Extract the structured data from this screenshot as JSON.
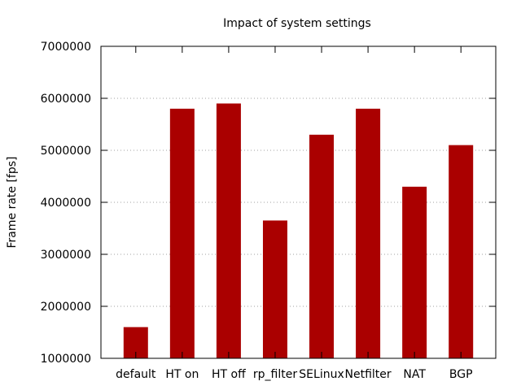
{
  "colors": {
    "bar": "#aa0000",
    "grid": "#a0a0a0",
    "axis": "#000000",
    "background": "#ffffff"
  },
  "chart_data": {
    "type": "bar",
    "title": "Impact of system settings",
    "xlabel": "",
    "ylabel": "Frame rate [fps]",
    "categories": [
      "default",
      "HT on",
      "HT off",
      "rp_filter",
      "SELinux",
      "Netfilter",
      "NAT",
      "BGP"
    ],
    "values": [
      1600000,
      5800000,
      5900000,
      3650000,
      5300000,
      5800000,
      4300000,
      5100000
    ],
    "ylim": [
      1000000,
      7000000
    ],
    "yticks": [
      1000000,
      2000000,
      3000000,
      4000000,
      5000000,
      6000000,
      7000000
    ],
    "ytick_labels": [
      "1000000",
      "2000000",
      "3000000",
      "4000000",
      "5000000",
      "6000000",
      "7000000"
    ],
    "grid": true,
    "grid_axis": "y",
    "legend": "none"
  }
}
